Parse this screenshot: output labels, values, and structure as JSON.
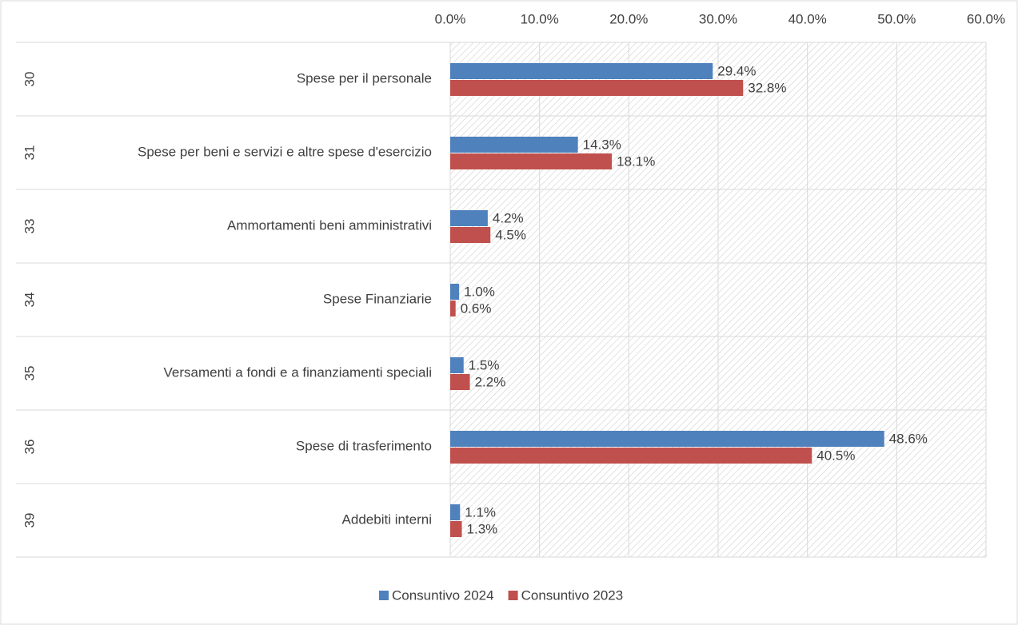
{
  "chart_data": {
    "type": "bar",
    "orientation": "horizontal",
    "categories": [
      "Spese per il personale",
      "Spese per beni e servizi e altre spese d'esercizio",
      "Ammortamenti beni amministrativi",
      "Spese Finanziarie",
      "Versamenti a fondi e a finanziamenti speciali",
      "Spese di trasferimento",
      "Addebiti interni"
    ],
    "category_codes": [
      "30",
      "31",
      "33",
      "34",
      "35",
      "36",
      "39"
    ],
    "series": [
      {
        "name": "Consuntivo 2024",
        "color": "#4f81bd",
        "values": [
          29.4,
          14.3,
          4.2,
          1.0,
          1.5,
          48.6,
          1.1
        ],
        "value_labels": [
          "29.4%",
          "14.3%",
          "4.2%",
          "1.0%",
          "1.5%",
          "48.6%",
          "1.1%"
        ]
      },
      {
        "name": "Consuntivo 2023",
        "color": "#c0504d",
        "values": [
          32.8,
          18.1,
          4.5,
          0.6,
          2.2,
          40.5,
          1.3
        ],
        "value_labels": [
          "32.8%",
          "18.1%",
          "4.5%",
          "0.6%",
          "2.2%",
          "40.5%",
          "1.3%"
        ]
      }
    ],
    "xlim": [
      0,
      60
    ],
    "xticks": [
      {
        "value": 0,
        "label": "0.0%"
      },
      {
        "value": 10,
        "label": "10.0%"
      },
      {
        "value": 20,
        "label": "20.0%"
      },
      {
        "value": 30,
        "label": "30.0%"
      },
      {
        "value": 40,
        "label": "40.0%"
      },
      {
        "value": 50,
        "label": "50.0%"
      },
      {
        "value": 60,
        "label": "60.0%"
      }
    ],
    "grid": true,
    "legend": "bottom"
  }
}
